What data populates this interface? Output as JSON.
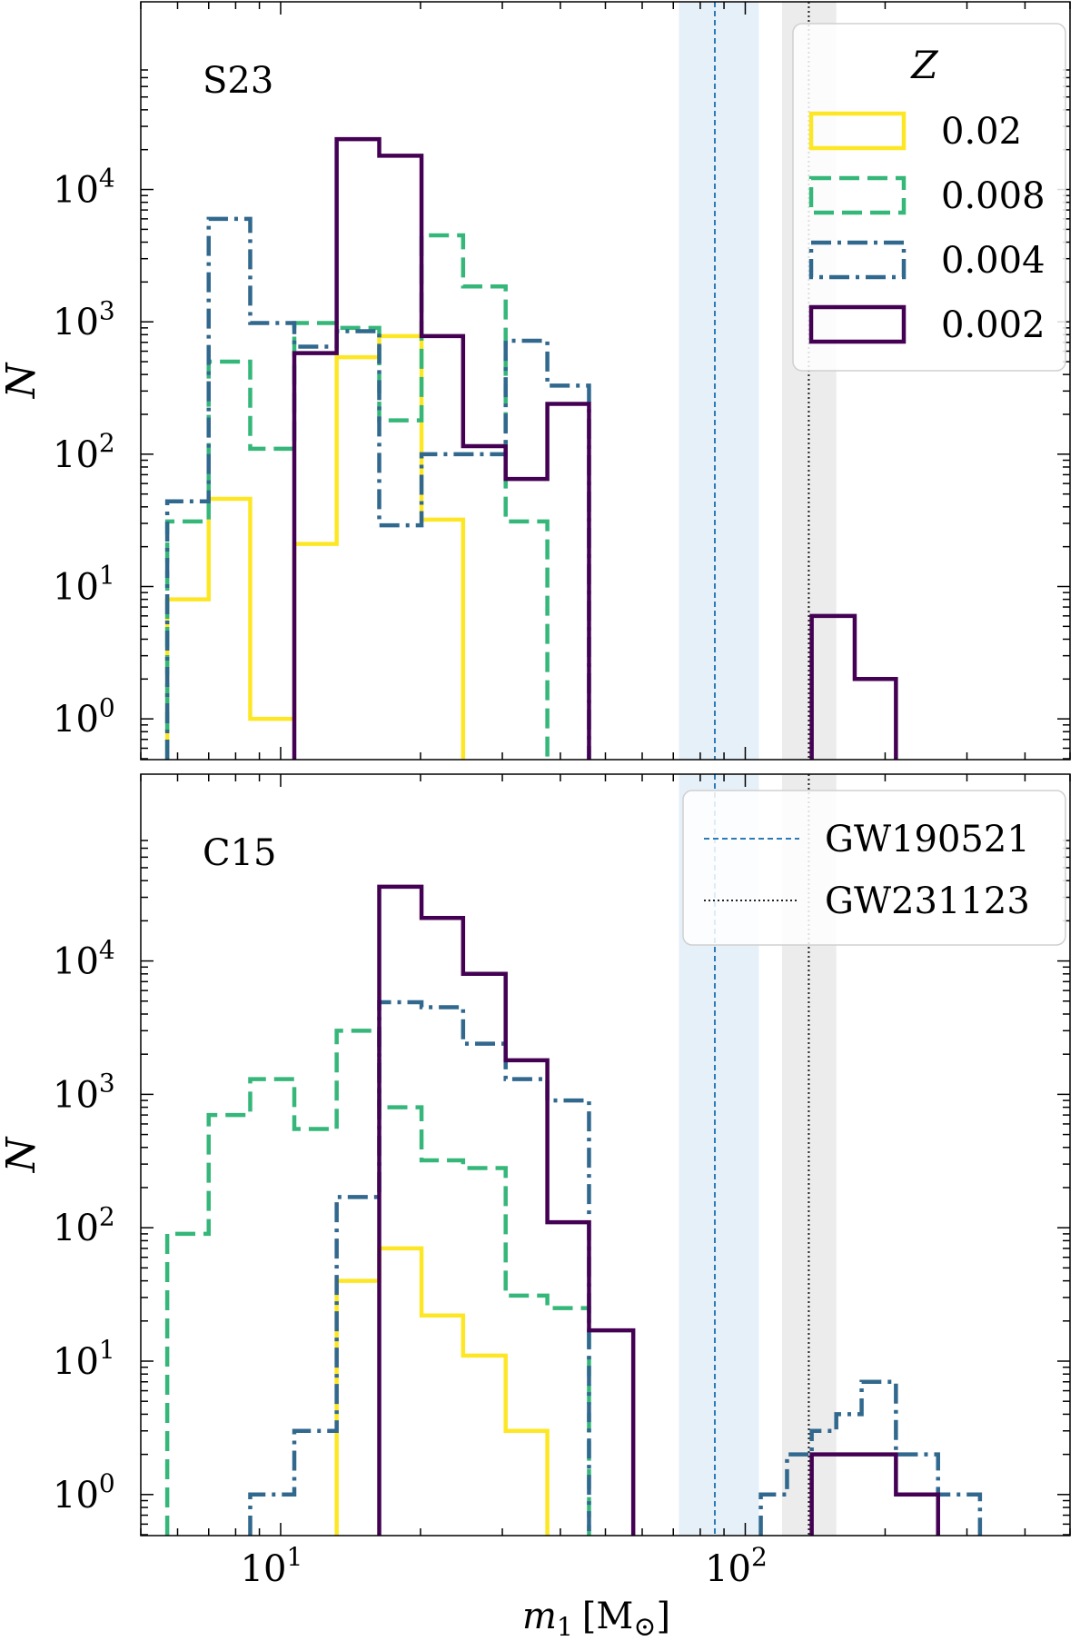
{
  "chart_data": [
    {
      "type": "step-histogram",
      "panel_label": "S23",
      "ylabel": "N",
      "xscale": "log",
      "yscale": "log",
      "xlim": [
        5,
        500
      ],
      "ylim": [
        0.5,
        80000
      ],
      "x_ticks": [
        {
          "value": 10,
          "base": "10",
          "exp": "1"
        },
        {
          "value": 100,
          "base": "10",
          "exp": "2"
        }
      ],
      "y_ticks": [
        {
          "value": 1,
          "base": "10",
          "exp": "0"
        },
        {
          "value": 10,
          "base": "10",
          "exp": "1"
        },
        {
          "value": 100,
          "base": "10",
          "exp": "2"
        },
        {
          "value": 1000,
          "base": "10",
          "exp": "3"
        },
        {
          "value": 10000,
          "base": "10",
          "exp": "4"
        }
      ],
      "legend": {
        "title": "Z",
        "placement": "top-right",
        "entries": [
          "0.02",
          "0.008",
          "0.004",
          "0.002"
        ]
      },
      "bands": [
        {
          "x": [
            72,
            107
          ],
          "color": "#d6e6f4"
        },
        {
          "x": [
            120,
            157
          ],
          "color": "#e0e0e0"
        }
      ],
      "vlines": [
        {
          "x": 86,
          "color": "#2c7bb6",
          "dash": "6,4"
        },
        {
          "x": 137,
          "color": "#222222",
          "dash": "2,3"
        }
      ],
      "series": [
        {
          "name": "0.02",
          "color": "#fde725",
          "dash": "",
          "edges": [
            5.7,
            7,
            8.6,
            10.7,
            13.2,
            16.3,
            20.1,
            24.7
          ],
          "values": [
            8,
            46,
            1,
            21,
            540,
            780,
            32
          ]
        },
        {
          "name": "0.008",
          "color": "#35b779",
          "dash": "22,9",
          "edges": [
            5.7,
            7,
            8.6,
            10.7,
            13.2,
            16.3,
            20.1,
            24.7,
            30.5,
            37.5
          ],
          "values": [
            31,
            500,
            110,
            980,
            900,
            180,
            4500,
            1850,
            31
          ]
        },
        {
          "name": "0.004",
          "color": "#31688e",
          "dash": "22,7,4,7",
          "edges": [
            5.7,
            7,
            8.6,
            10.7,
            13.2,
            16.3,
            20.1,
            24.7,
            30.5,
            37.5,
            46.1
          ],
          "values": [
            44,
            6000,
            980,
            650,
            850,
            29,
            100,
            100,
            720,
            330
          ]
        },
        {
          "name": "0.002",
          "color": "#440154",
          "dash": "",
          "edges": [
            10.7,
            13.2,
            16.3,
            20.1,
            24.7,
            30.5,
            37.5,
            46.1
          ],
          "values": [
            580,
            24000,
            18000,
            780,
            115,
            65,
            240
          ]
        },
        {
          "name": "0.002-high",
          "color": "#440154",
          "dash": "",
          "edges": [
            139,
            172,
            211
          ],
          "values": [
            6,
            2
          ]
        }
      ]
    },
    {
      "type": "step-histogram",
      "panel_label": "C15",
      "ylabel": "N",
      "xlabel": {
        "main": "m",
        "sub": "1",
        "unit_open": "[M",
        "unit_close": "]"
      },
      "xscale": "log",
      "yscale": "log",
      "xlim": [
        5,
        500
      ],
      "ylim": [
        0.5,
        80000
      ],
      "x_ticks": [
        {
          "value": 10,
          "base": "10",
          "exp": "1"
        },
        {
          "value": 100,
          "base": "10",
          "exp": "2"
        }
      ],
      "y_ticks": [
        {
          "value": 1,
          "base": "10",
          "exp": "0"
        },
        {
          "value": 10,
          "base": "10",
          "exp": "1"
        },
        {
          "value": 100,
          "base": "10",
          "exp": "2"
        },
        {
          "value": 1000,
          "base": "10",
          "exp": "3"
        },
        {
          "value": 10000,
          "base": "10",
          "exp": "4"
        }
      ],
      "legend": {
        "placement": "top-right",
        "entries": [
          "GW190521",
          "GW231123"
        ]
      },
      "bands": [
        {
          "x": [
            72,
            107
          ],
          "color": "#d6e6f4"
        },
        {
          "x": [
            120,
            157
          ],
          "color": "#e0e0e0"
        }
      ],
      "vlines": [
        {
          "x": 86,
          "color": "#2c7bb6",
          "dash": "6,4"
        },
        {
          "x": 137,
          "color": "#222222",
          "dash": "2,3"
        }
      ],
      "series": [
        {
          "name": "0.02",
          "color": "#fde725",
          "dash": "",
          "edges": [
            13.2,
            16.3,
            20.1,
            24.7,
            30.5,
            37.5
          ],
          "values": [
            40,
            70,
            22,
            11,
            3
          ]
        },
        {
          "name": "0.008",
          "color": "#35b779",
          "dash": "22,9",
          "edges": [
            5.7,
            7,
            8.6,
            10.7,
            13.2,
            16.3,
            20.1,
            24.7,
            30.5,
            37.5,
            46.1
          ],
          "values": [
            90,
            700,
            1300,
            550,
            3000,
            800,
            320,
            280,
            31,
            25
          ]
        },
        {
          "name": "0.004",
          "color": "#31688e",
          "dash": "22,7,4,7",
          "edges": [
            8.6,
            10.7,
            13.2,
            16.3,
            20.1,
            24.7,
            30.5,
            37.5,
            46.1
          ],
          "values": [
            1,
            3,
            170,
            4900,
            4500,
            2400,
            1300,
            900
          ]
        },
        {
          "name": "0.004-high",
          "color": "#31688e",
          "dash": "22,7,4,7",
          "edges": [
            108,
            123,
            139,
            157,
            178,
            211,
            260,
            320
          ],
          "values": [
            1,
            2,
            3,
            4,
            7,
            2,
            1
          ]
        },
        {
          "name": "0.002",
          "color": "#440154",
          "dash": "",
          "edges": [
            16.3,
            20.1,
            24.7,
            30.5,
            37.5,
            46.1,
            57.4
          ],
          "values": [
            36000,
            21000,
            8000,
            1800,
            110,
            17
          ]
        },
        {
          "name": "0.002-high",
          "color": "#440154",
          "dash": "",
          "edges": [
            139,
            178,
            211,
            260
          ],
          "values": [
            2,
            2,
            1
          ]
        }
      ]
    }
  ]
}
